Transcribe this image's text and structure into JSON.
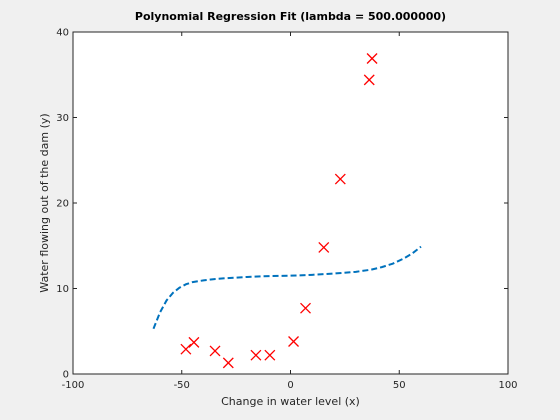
{
  "chart_data": {
    "type": "scatter",
    "title": "Polynomial Regression Fit (lambda = 500.000000)",
    "xlabel": "Change in water level (x)",
    "ylabel": "Water flowing out of the dam (y)",
    "xlim": [
      -100,
      100
    ],
    "ylim": [
      0,
      40
    ],
    "xticks": [
      -100,
      -50,
      0,
      50,
      100
    ],
    "yticks": [
      0,
      10,
      20,
      30,
      40
    ],
    "grid": false,
    "series": [
      {
        "kind": "scatter",
        "marker": "x",
        "color": "#ff0000",
        "points": [
          {
            "x": -48.1,
            "y": 2.9
          },
          {
            "x": -44.4,
            "y": 3.7
          },
          {
            "x": -34.7,
            "y": 2.7
          },
          {
            "x": -28.6,
            "y": 1.3
          },
          {
            "x": -15.9,
            "y": 2.2
          },
          {
            "x": -9.5,
            "y": 2.2
          },
          {
            "x": 1.4,
            "y": 3.8
          },
          {
            "x": 6.9,
            "y": 7.7
          },
          {
            "x": 15.3,
            "y": 14.8
          },
          {
            "x": 22.9,
            "y": 22.8
          },
          {
            "x": 36.2,
            "y": 34.4
          },
          {
            "x": 37.5,
            "y": 36.9
          }
        ]
      },
      {
        "kind": "line",
        "style": "dashed",
        "color": "#0072bd",
        "points": [
          {
            "x": -63,
            "y": 5.3
          },
          {
            "x": -60,
            "y": 7.2
          },
          {
            "x": -57,
            "y": 8.6
          },
          {
            "x": -54,
            "y": 9.5
          },
          {
            "x": -51,
            "y": 10.1
          },
          {
            "x": -48,
            "y": 10.5
          },
          {
            "x": -45,
            "y": 10.75
          },
          {
            "x": -40,
            "y": 10.95
          },
          {
            "x": -35,
            "y": 11.1
          },
          {
            "x": -30,
            "y": 11.2
          },
          {
            "x": -20,
            "y": 11.35
          },
          {
            "x": -10,
            "y": 11.45
          },
          {
            "x": 0,
            "y": 11.5
          },
          {
            "x": 10,
            "y": 11.6
          },
          {
            "x": 20,
            "y": 11.75
          },
          {
            "x": 30,
            "y": 11.95
          },
          {
            "x": 37,
            "y": 12.2
          },
          {
            "x": 42,
            "y": 12.5
          },
          {
            "x": 47,
            "y": 12.9
          },
          {
            "x": 52,
            "y": 13.5
          },
          {
            "x": 56,
            "y": 14.1
          },
          {
            "x": 60,
            "y": 14.9
          }
        ]
      }
    ]
  }
}
